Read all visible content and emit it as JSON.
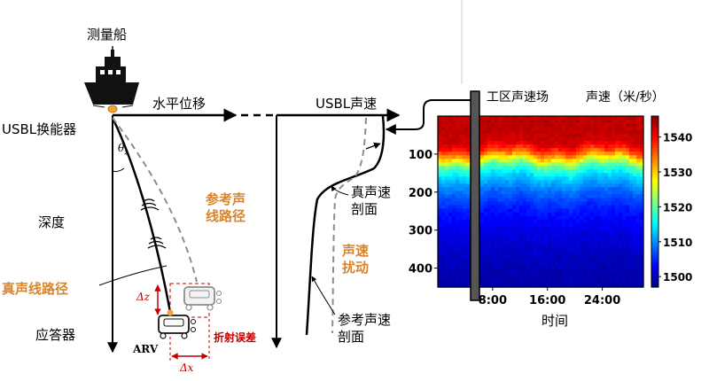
{
  "labels": {
    "ship": "测量船",
    "transducer": "USBL换能器",
    "horizontal_offset": "水平位移",
    "depth": "深度",
    "theta": "θ",
    "theta_sub": "z",
    "true_ray_path": "真声线路径",
    "reference_ray_path_line1": "参考声",
    "reference_ray_path_line2": "线路径",
    "transponder": "应答器",
    "arv": "ARV",
    "delta_z": "Δz",
    "delta_x": "Δx",
    "refraction_error": "折射误差",
    "usbl_sound_speed": "USBL声速",
    "true_profile_line1": "真声速",
    "true_profile_line2": "剖面",
    "perturbation_line1": "声速",
    "perturbation_line2": "扰动",
    "reference_profile_line1": "参考声速",
    "reference_profile_line2": "剖面",
    "work_area_sound_speed": "工区声速场",
    "sound_speed_title": "声速（米/秒）",
    "time_label": "时间"
  },
  "colors": {
    "black": "#000000",
    "orange": "#D9842A",
    "red": "#C00000",
    "gray": "#8C8C8C",
    "transducer": "#F2A23A"
  },
  "chart_data": {
    "type": "heatmap",
    "title": "声速（米/秒）",
    "xlabel": "时间",
    "ylabel": "",
    "x_ticks": [
      "8:00",
      "16:00",
      "24:00"
    ],
    "x_tick_values": [
      8,
      16,
      24
    ],
    "xlim": [
      0,
      30
    ],
    "y_ticks": [
      100,
      200,
      300,
      400
    ],
    "ylim": [
      0,
      450
    ],
    "y_inverted": true,
    "colorbar": {
      "ticks": [
        1500,
        1510,
        1520,
        1530,
        1540
      ],
      "range": [
        1497,
        1546
      ],
      "colormap": "jet"
    },
    "profile_depth": [
      0,
      40,
      70,
      85,
      100,
      115,
      130,
      160,
      200,
      250,
      300,
      350,
      400,
      450
    ],
    "profile_speed": [
      1543,
      1543,
      1542,
      1539,
      1534,
      1527,
      1520,
      1513,
      1508,
      1504,
      1502,
      1500.5,
      1499.5,
      1499
    ]
  }
}
